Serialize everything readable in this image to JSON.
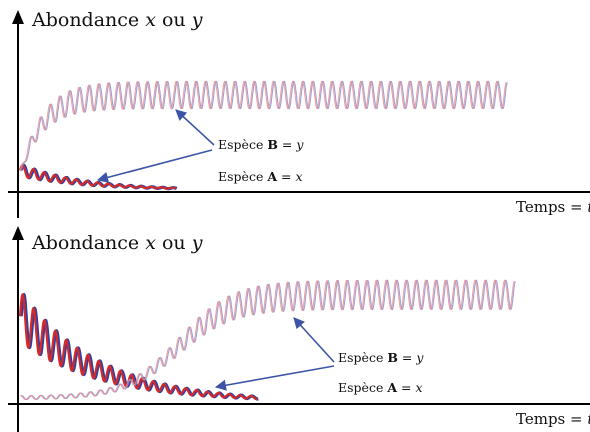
{
  "chart_data": [
    {
      "type": "line",
      "ylabel": {
        "prefix": "Abondance ",
        "var1": "x",
        "mid": " ou ",
        "var2": "y"
      },
      "xlabel": {
        "prefix": "Temps = ",
        "var": "t"
      },
      "xlim": [
        0,
        100
      ],
      "ylim": [
        0,
        10
      ],
      "series": [
        {
          "sp": "A",
          "color": "#d42a2a",
          "dark": "#3040a0",
          "start": 1.5,
          "amp0": 0.45,
          "tau": 13,
          "period": 2.2,
          "fade": 32
        },
        {
          "sp": "B",
          "color": "#ee8a8a",
          "dark": "#8890d0",
          "floor": 1.3,
          "capacity": 7.2,
          "amp": 0.9,
          "risetime": 4.5,
          "period": 2.0,
          "end": 100
        }
      ],
      "annotations": [
        {
          "prefix": "Espèce ",
          "sp": "B",
          "eq": " = ",
          "var": "y"
        },
        {
          "prefix": "Espèce ",
          "sp": "A",
          "eq": " = ",
          "var": "x"
        }
      ]
    },
    {
      "type": "line",
      "ylabel": {
        "prefix": "Abondance ",
        "var1": "x",
        "mid": " ou ",
        "var2": "y"
      },
      "xlabel": {
        "prefix": "Temps = ",
        "var": "t"
      },
      "xlim": [
        0,
        100
      ],
      "ylim": [
        0,
        10
      ],
      "series": [
        {
          "sp": "A",
          "color": "#d42a2a",
          "dark": "#3040a0",
          "start": 6.4,
          "amp0": 1.9,
          "tau": 16,
          "period": 2.2,
          "fade": 48
        },
        {
          "sp": "B",
          "color": "#ee8a8a",
          "dark": "#8890d0",
          "floor": 0.3,
          "capacity": 8.0,
          "amp": 0.95,
          "midpoint": 32,
          "steep": 5.5,
          "period": 2.0,
          "end": 100
        }
      ],
      "annotations": [
        {
          "prefix": "Espèce ",
          "sp": "B",
          "eq": " = ",
          "var": "y"
        },
        {
          "prefix": "Espèce ",
          "sp": "A",
          "eq": " = ",
          "var": "x"
        }
      ]
    }
  ]
}
